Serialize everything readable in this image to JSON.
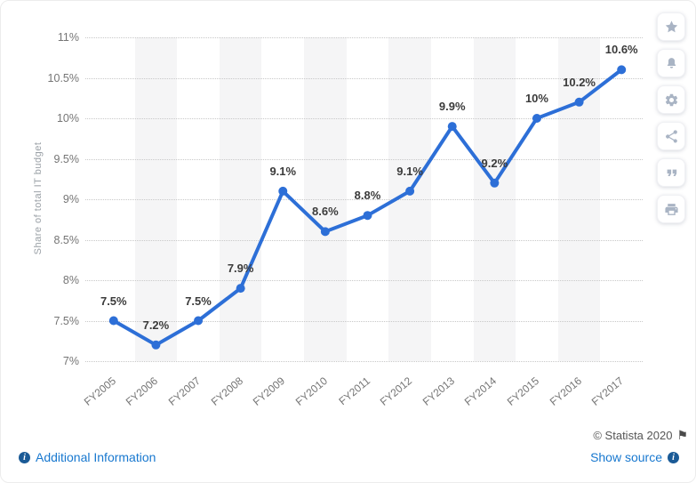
{
  "chart_data": {
    "type": "line",
    "title": "",
    "xlabel": "",
    "ylabel": "Share of total IT budget",
    "categories": [
      "FY2005",
      "FY2006",
      "FY2007",
      "FY2008",
      "FY2009",
      "FY2010",
      "FY2011",
      "FY2012",
      "FY2013",
      "FY2014",
      "FY2015",
      "FY2016",
      "FY2017"
    ],
    "values": [
      7.5,
      7.2,
      7.5,
      7.9,
      9.1,
      8.6,
      8.8,
      9.1,
      9.9,
      9.2,
      10.0,
      10.2,
      10.6
    ],
    "point_labels": [
      "7.5%",
      "7.2%",
      "7.5%",
      "7.9%",
      "9.1%",
      "8.6%",
      "8.8%",
      "9.1%",
      "9.9%",
      "9.2%",
      "10%",
      "10.2%",
      "10.6%"
    ],
    "ylim": [
      7,
      11
    ],
    "y_tick_step": 0.5,
    "y_tick_labels": [
      "7%",
      "7.5%",
      "8%",
      "8.5%",
      "9%",
      "9.5%",
      "10%",
      "10.5%",
      "11%"
    ],
    "grid": "horizontal-dotted",
    "legend": "none",
    "line_color": "#2d6fd7",
    "alternating_band_color": "#f5f5f6"
  },
  "toolbar": {
    "icons": [
      "star-icon",
      "bell-icon",
      "gear-icon",
      "share-icon",
      "quote-icon",
      "printer-icon"
    ]
  },
  "footer": {
    "additional_info": "Additional Information",
    "copyright": "© Statista 2020",
    "show_source": "Show source"
  },
  "colors": {
    "link": "#1878cf",
    "copyright_text": "#555555",
    "axis_text": "#757575",
    "data_label": "#3b3b3b",
    "toolbar_icon": "#a9b4c4",
    "info_icon_bg": "#1a5a96"
  }
}
